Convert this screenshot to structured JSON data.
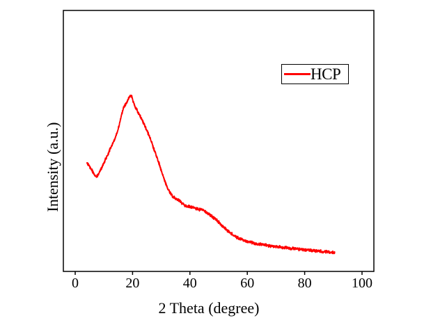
{
  "figure": {
    "background_color": "#FFFFFF",
    "frame_color": "#000000",
    "text_color": "#000000"
  },
  "legend": {
    "position": "upper-right-inside",
    "entries": [
      {
        "label": "HCP",
        "line_color": "#FF0000"
      }
    ]
  },
  "chart_data": {
    "type": "line",
    "title": "",
    "xlabel": "2 Theta (degree)",
    "ylabel": "Intensity (a.u.)",
    "x_ticks": [
      0,
      20,
      40,
      60,
      80,
      100
    ],
    "y_ticks": [],
    "xlim": [
      -4.13,
      104.13
    ],
    "ylim": [
      0,
      1.48
    ],
    "grid": false,
    "legend_position": "upper right inside",
    "y_units": "arbitrary units (normalized, main peak = 1)",
    "peaks": {
      "main_broad_peak_2theta": 19.5,
      "weak_shoulder_2theta": 41
    },
    "series": [
      {
        "name": "HCP",
        "color": "#FF0000",
        "style": "noisy solid line",
        "x": [
          4.1,
          5.6,
          7.3,
          8.7,
          10.2,
          12.6,
          14.6,
          16.7,
          18.0,
          19.4,
          20.6,
          23.1,
          25.5,
          28.4,
          30.3,
          32.0,
          34.0,
          36.2,
          38.1,
          40.0,
          42.5,
          45.0,
          49.0,
          52.0,
          56.0,
          61.0,
          66.0,
          71.0,
          76.0,
          81.0,
          86.0,
          90.5
        ],
        "y": [
          0.618,
          0.579,
          0.539,
          0.571,
          0.622,
          0.709,
          0.787,
          0.917,
          0.957,
          1.0,
          0.945,
          0.866,
          0.78,
          0.65,
          0.559,
          0.48,
          0.425,
          0.402,
          0.374,
          0.366,
          0.354,
          0.343,
          0.295,
          0.248,
          0.197,
          0.165,
          0.15,
          0.138,
          0.13,
          0.122,
          0.114,
          0.106
        ]
      }
    ]
  }
}
